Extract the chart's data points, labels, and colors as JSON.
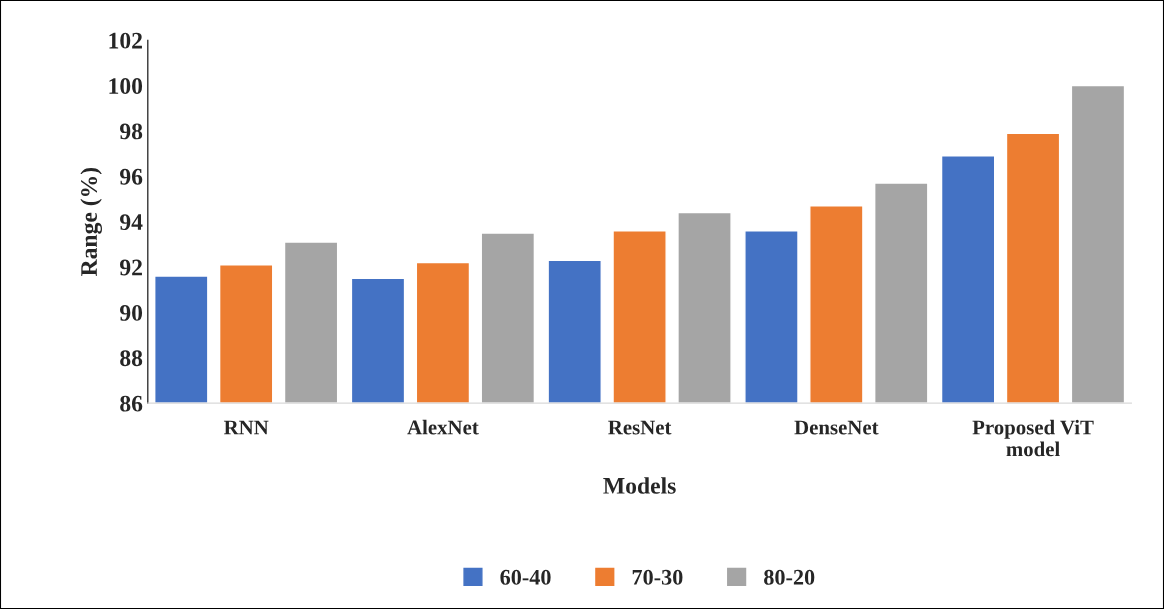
{
  "chart_data": {
    "type": "bar",
    "xlabel": "Models",
    "ylabel": "Range (%)",
    "categories": [
      "RNN",
      "AlexNet",
      "ResNet",
      "DenseNet",
      "Proposed ViT model"
    ],
    "series": [
      {
        "name": "60-40",
        "color": "#4472c4",
        "values": [
          91.6,
          91.5,
          92.3,
          93.6,
          96.9
        ]
      },
      {
        "name": "70-30",
        "color": "#ed7d31",
        "values": [
          92.1,
          92.2,
          93.6,
          94.7,
          97.9
        ]
      },
      {
        "name": "80-20",
        "color": "#a5a5a5",
        "values": [
          93.1,
          93.5,
          94.4,
          95.7,
          100.0
        ]
      }
    ],
    "ylim": [
      86,
      102
    ],
    "yticks": [
      86,
      88,
      90,
      92,
      94,
      96,
      98,
      100,
      102
    ],
    "grid": false,
    "legend": "bottom"
  }
}
